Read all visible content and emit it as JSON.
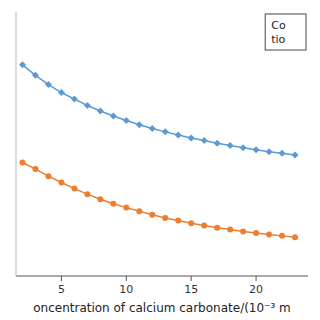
{
  "chart_data": {
    "type": "line",
    "xlabel": "oncentration of calcium carbonate/(10⁻³ m",
    "annotation": "Co\ntio",
    "x": [
      2,
      3,
      4,
      5,
      6,
      7,
      8,
      9,
      10,
      11,
      12,
      13,
      14,
      15,
      16,
      17,
      18,
      19,
      20,
      21,
      22,
      23
    ],
    "series": [
      {
        "color": "#5B9BD5",
        "marker": "diamond",
        "line_style": "solid",
        "values": [
          0.95,
          0.91,
          0.875,
          0.845,
          0.82,
          0.796,
          0.775,
          0.756,
          0.739,
          0.723,
          0.709,
          0.696,
          0.684,
          0.673,
          0.663,
          0.653,
          0.644,
          0.636,
          0.628,
          0.621,
          0.615,
          0.608
        ]
      },
      {
        "color": "#ED7D31",
        "marker": "circle",
        "line_style": "solid",
        "values": [
          0.58,
          0.555,
          0.528,
          0.504,
          0.481,
          0.46,
          0.441,
          0.424,
          0.409,
          0.395,
          0.382,
          0.37,
          0.36,
          0.35,
          0.341,
          0.333,
          0.326,
          0.319,
          0.313,
          0.307,
          0.302,
          0.297
        ]
      }
    ],
    "xlim": [
      1.5,
      24
    ],
    "ylim": [
      0.15,
      1.15
    ],
    "xticks": [
      5,
      10,
      15,
      20
    ],
    "yticks": [],
    "tick_labels": "x",
    "grid": false
  }
}
